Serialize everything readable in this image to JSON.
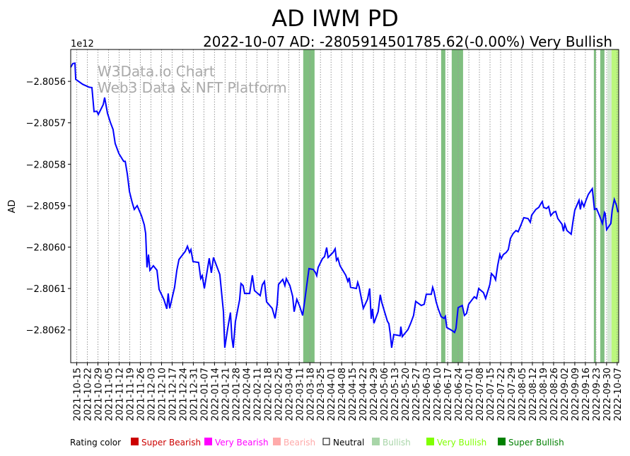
{
  "chart_data": {
    "type": "line",
    "title": "AD IWM PD",
    "subtitle": "2022-10-07 AD: -2805914501785.62(-0.00%) Very Bullish",
    "ylabel": "AD",
    "y_multiplier_label": "1e12",
    "watermark": [
      "W3Data.io Chart",
      "Web3 Data & NFT Platform"
    ],
    "x_start_date": "2021-10-11",
    "x_unit": "days since start",
    "xlim": [
      0,
      362
    ],
    "ylim": [
      -2.806279,
      -2.805523
    ],
    "yticks": [
      -2.8056,
      -2.8057,
      -2.8058,
      -2.8059,
      -2.806,
      -2.8061,
      -2.8062
    ],
    "ytick_labels": [
      "−2.8056",
      "−2.8057",
      "−2.8058",
      "−2.8059",
      "−2.8060",
      "−2.8061",
      "−2.8062"
    ],
    "xtick_first_day": 4,
    "xtick_step_days": 7,
    "xtick_labels": [
      "2021-10-15",
      "2021-10-22",
      "2021-10-29",
      "2021-11-05",
      "2021-11-12",
      "2021-11-19",
      "2021-11-26",
      "2021-12-03",
      "2021-12-10",
      "2021-12-17",
      "2021-12-24",
      "2021-12-31",
      "2022-01-07",
      "2022-01-14",
      "2022-01-21",
      "2022-01-28",
      "2022-02-04",
      "2022-02-11",
      "2022-02-18",
      "2022-02-25",
      "2022-03-04",
      "2022-03-11",
      "2022-03-18",
      "2022-03-25",
      "2022-04-01",
      "2022-04-08",
      "2022-04-15",
      "2022-04-22",
      "2022-04-29",
      "2022-05-06",
      "2022-05-13",
      "2022-05-20",
      "2022-05-27",
      "2022-06-03",
      "2022-06-10",
      "2022-06-17",
      "2022-06-24",
      "2022-07-01",
      "2022-07-08",
      "2022-07-15",
      "2022-07-22",
      "2022-07-29",
      "2022-08-05",
      "2022-08-12",
      "2022-08-19",
      "2022-08-26",
      "2022-09-02",
      "2022-09-09",
      "2022-09-16",
      "2022-09-23",
      "2022-09-30",
      "2022-10-07"
    ],
    "grid": "vertical dotted",
    "line_color": "#0000ff",
    "series": [
      {
        "name": "AD",
        "points": [
          [
            0,
            -2.805566
          ],
          [
            1.4,
            -2.805557
          ],
          [
            2.8,
            -2.805556
          ],
          [
            3.3,
            -2.805595
          ],
          [
            7.9,
            -2.805607
          ],
          [
            12.1,
            -2.805614
          ],
          [
            14.0,
            -2.805615
          ],
          [
            15.4,
            -2.805673
          ],
          [
            17.3,
            -2.805672
          ],
          [
            18.2,
            -2.80568
          ],
          [
            21.5,
            -2.805656
          ],
          [
            22.4,
            -2.805639
          ],
          [
            24.3,
            -2.805677
          ],
          [
            26.2,
            -2.805699
          ],
          [
            28.0,
            -2.805716
          ],
          [
            29.4,
            -2.80575
          ],
          [
            31.8,
            -2.805774
          ],
          [
            35.0,
            -2.805793
          ],
          [
            36.0,
            -2.805793
          ],
          [
            37.4,
            -2.805824
          ],
          [
            38.8,
            -2.805866
          ],
          [
            40.6,
            -2.805892
          ],
          [
            42.0,
            -2.805909
          ],
          [
            43.9,
            -2.8059
          ],
          [
            46.7,
            -2.805924
          ],
          [
            48.6,
            -2.805946
          ],
          [
            49.5,
            -2.805967
          ],
          [
            50.4,
            -2.806049
          ],
          [
            51.4,
            -2.806018
          ],
          [
            52.3,
            -2.806056
          ],
          [
            54.6,
            -2.806045
          ],
          [
            57.0,
            -2.806056
          ],
          [
            58.4,
            -2.806102
          ],
          [
            61.6,
            -2.806127
          ],
          [
            63.5,
            -2.806149
          ],
          [
            64.4,
            -2.806112
          ],
          [
            65.4,
            -2.806148
          ],
          [
            68.6,
            -2.806097
          ],
          [
            70.1,
            -2.806056
          ],
          [
            71.5,
            -2.80603
          ],
          [
            75.7,
            -2.80601
          ],
          [
            77.1,
            -2.805998
          ],
          [
            78.5,
            -2.806013
          ],
          [
            79.4,
            -2.806006
          ],
          [
            80.8,
            -2.806035
          ],
          [
            84.5,
            -2.806037
          ],
          [
            85.9,
            -2.806076
          ],
          [
            86.9,
            -2.806069
          ],
          [
            88.3,
            -2.8061
          ],
          [
            91.5,
            -2.806027
          ],
          [
            92.9,
            -2.806062
          ],
          [
            94.3,
            -2.806025
          ],
          [
            98.5,
            -2.806066
          ],
          [
            100.9,
            -2.806156
          ],
          [
            101.8,
            -2.806243
          ],
          [
            103.7,
            -2.806197
          ],
          [
            105.5,
            -2.806158
          ],
          [
            106.5,
            -2.806219
          ],
          [
            107.4,
            -2.806243
          ],
          [
            108.8,
            -2.80618
          ],
          [
            111.6,
            -2.806127
          ],
          [
            112.5,
            -2.806088
          ],
          [
            113.9,
            -2.806093
          ],
          [
            114.9,
            -2.806112
          ],
          [
            118.2,
            -2.806112
          ],
          [
            120.0,
            -2.806068
          ],
          [
            121.4,
            -2.806105
          ],
          [
            125.2,
            -2.806117
          ],
          [
            126.6,
            -2.806091
          ],
          [
            128.0,
            -2.806083
          ],
          [
            129.4,
            -2.806132
          ],
          [
            133.1,
            -2.806148
          ],
          [
            135.0,
            -2.806172
          ],
          [
            136.4,
            -2.806138
          ],
          [
            137.3,
            -2.80609
          ],
          [
            140.1,
            -2.806078
          ],
          [
            141.5,
            -2.806093
          ],
          [
            142.4,
            -2.806076
          ],
          [
            144.8,
            -2.806093
          ],
          [
            146.6,
            -2.806119
          ],
          [
            147.6,
            -2.806156
          ],
          [
            149.4,
            -2.806126
          ],
          [
            151.3,
            -2.806143
          ],
          [
            153.2,
            -2.806165
          ],
          [
            154.6,
            -2.806129
          ],
          [
            156.0,
            -2.80609
          ],
          [
            157.4,
            -2.806052
          ],
          [
            160.2,
            -2.806054
          ],
          [
            161.6,
            -2.806061
          ],
          [
            162.5,
            -2.806069
          ],
          [
            163.5,
            -2.806049
          ],
          [
            166.3,
            -2.806028
          ],
          [
            167.7,
            -2.806023
          ],
          [
            169.1,
            -2.806001
          ],
          [
            170.0,
            -2.806025
          ],
          [
            173.3,
            -2.806013
          ],
          [
            174.7,
            -2.806004
          ],
          [
            175.6,
            -2.806032
          ],
          [
            176.5,
            -2.806027
          ],
          [
            177.9,
            -2.806045
          ],
          [
            181.7,
            -2.806068
          ],
          [
            183.1,
            -2.806083
          ],
          [
            184.0,
            -2.806074
          ],
          [
            184.9,
            -2.806097
          ],
          [
            188.7,
            -2.8061
          ],
          [
            189.6,
            -2.806085
          ],
          [
            190.5,
            -2.806095
          ],
          [
            193.3,
            -2.806148
          ],
          [
            196.1,
            -2.806126
          ],
          [
            197.5,
            -2.8061
          ],
          [
            198.5,
            -2.806173
          ],
          [
            199.4,
            -2.806149
          ],
          [
            200.3,
            -2.806184
          ],
          [
            203.1,
            -2.806156
          ],
          [
            204.5,
            -2.806115
          ],
          [
            205.5,
            -2.806134
          ],
          [
            209.2,
            -2.806179
          ],
          [
            210.2,
            -2.806185
          ],
          [
            211.1,
            -2.806209
          ],
          [
            212.0,
            -2.806243
          ],
          [
            213.4,
            -2.806211
          ],
          [
            217.6,
            -2.806214
          ],
          [
            218.1,
            -2.806192
          ],
          [
            219.0,
            -2.806216
          ],
          [
            222.8,
            -2.806199
          ],
          [
            224.6,
            -2.806184
          ],
          [
            226.5,
            -2.806165
          ],
          [
            227.9,
            -2.806131
          ],
          [
            231.6,
            -2.806141
          ],
          [
            233.5,
            -2.806138
          ],
          [
            234.9,
            -2.806114
          ],
          [
            238.2,
            -2.806114
          ],
          [
            239.1,
            -2.806097
          ],
          [
            240.0,
            -2.806107
          ],
          [
            241.4,
            -2.806132
          ],
          [
            242.8,
            -2.806149
          ],
          [
            244.7,
            -2.806168
          ],
          [
            246.6,
            -2.806172
          ],
          [
            247.5,
            -2.806167
          ],
          [
            248.4,
            -2.806194
          ],
          [
            252.2,
            -2.806202
          ],
          [
            253.6,
            -2.806206
          ],
          [
            254.5,
            -2.806196
          ],
          [
            255.9,
            -2.806146
          ],
          [
            258.7,
            -2.806141
          ],
          [
            260.1,
            -2.806165
          ],
          [
            261.5,
            -2.80616
          ],
          [
            262.9,
            -2.806138
          ],
          [
            266.6,
            -2.80612
          ],
          [
            268.1,
            -2.806124
          ],
          [
            269.5,
            -2.8061
          ],
          [
            272.7,
            -2.80611
          ],
          [
            274.1,
            -2.806124
          ],
          [
            275.5,
            -2.806107
          ],
          [
            276.9,
            -2.80609
          ],
          [
            277.9,
            -2.806064
          ],
          [
            279.7,
            -2.806071
          ],
          [
            280.7,
            -2.806079
          ],
          [
            282.1,
            -2.806044
          ],
          [
            283.5,
            -2.806018
          ],
          [
            284.4,
            -2.806028
          ],
          [
            285.8,
            -2.806018
          ],
          [
            287.7,
            -2.806013
          ],
          [
            289.1,
            -2.806006
          ],
          [
            290.5,
            -2.805979
          ],
          [
            292.3,
            -2.805967
          ],
          [
            294.2,
            -2.80596
          ],
          [
            295.6,
            -2.805963
          ],
          [
            297.5,
            -2.805946
          ],
          [
            299.3,
            -2.805929
          ],
          [
            302.1,
            -2.805931
          ],
          [
            303.6,
            -2.80594
          ],
          [
            304.5,
            -2.805923
          ],
          [
            307.3,
            -2.805909
          ],
          [
            309.2,
            -2.805904
          ],
          [
            310.6,
            -2.805895
          ],
          [
            311.5,
            -2.80589
          ],
          [
            312.4,
            -2.805904
          ],
          [
            314.3,
            -2.805907
          ],
          [
            315.7,
            -2.805902
          ],
          [
            317.1,
            -2.805924
          ],
          [
            319.0,
            -2.805916
          ],
          [
            320.4,
            -2.805914
          ],
          [
            321.8,
            -2.805931
          ],
          [
            324.6,
            -2.805945
          ],
          [
            325.5,
            -2.805962
          ],
          [
            326.4,
            -2.805945
          ],
          [
            327.8,
            -2.80596
          ],
          [
            330.6,
            -2.805969
          ],
          [
            332.0,
            -2.805933
          ],
          [
            333.0,
            -2.805911
          ],
          [
            334.4,
            -2.805899
          ],
          [
            335.8,
            -2.805887
          ],
          [
            336.7,
            -2.805909
          ],
          [
            337.6,
            -2.80589
          ],
          [
            339.0,
            -2.805902
          ],
          [
            340.4,
            -2.805887
          ],
          [
            341.9,
            -2.805873
          ],
          [
            343.2,
            -2.805866
          ],
          [
            344.6,
            -2.805859
          ],
          [
            346.0,
            -2.805909
          ],
          [
            347.4,
            -2.805907
          ],
          [
            349.3,
            -2.805924
          ],
          [
            351.2,
            -2.805943
          ],
          [
            352.6,
            -2.805916
          ],
          [
            353.1,
            -2.805919
          ],
          [
            354.0,
            -2.805958
          ],
          [
            356.8,
            -2.805943
          ],
          [
            357.7,
            -2.805911
          ],
          [
            359.1,
            -2.805885
          ],
          [
            360.5,
            -2.805899
          ],
          [
            361.5,
            -2.805916
          ]
        ]
      }
    ],
    "rating_bands": [
      {
        "from": 153.6,
        "to": 161.1,
        "rating": "Bullish",
        "color": "#80bf80"
      },
      {
        "from": 244.7,
        "to": 247.5,
        "rating": "Bullish",
        "color": "#80bf80"
      },
      {
        "from": 251.7,
        "to": 259.2,
        "rating": "Bullish",
        "color": "#80bf80"
      },
      {
        "from": 345.6,
        "to": 347.0,
        "rating": "Bullish",
        "color": "#80bf80"
      },
      {
        "from": 349.8,
        "to": 352.6,
        "rating": "Bullish",
        "color": "#80bf80"
      },
      {
        "from": 354.5,
        "to": 357.3,
        "rating": "Neutral-Bullish",
        "color": "#d3e9d3"
      },
      {
        "from": 357.3,
        "to": 362,
        "rating": "Very Bullish",
        "color": "#bbf77c"
      }
    ],
    "legend": {
      "title": "Rating color",
      "placement": "bottom",
      "items": [
        {
          "label": "Super Bearish",
          "color": "#cc0000"
        },
        {
          "label": "Very Bearish",
          "color": "#ff00ff"
        },
        {
          "label": "Bearish",
          "color": "#ffaaaa"
        },
        {
          "label": "Neutral",
          "color": "#000000",
          "hollow": true
        },
        {
          "label": "Bullish",
          "color": "#a8d5a8"
        },
        {
          "label": "Very Bullish",
          "color": "#80ff00"
        },
        {
          "label": "Super Bullish",
          "color": "#008000"
        }
      ]
    }
  }
}
